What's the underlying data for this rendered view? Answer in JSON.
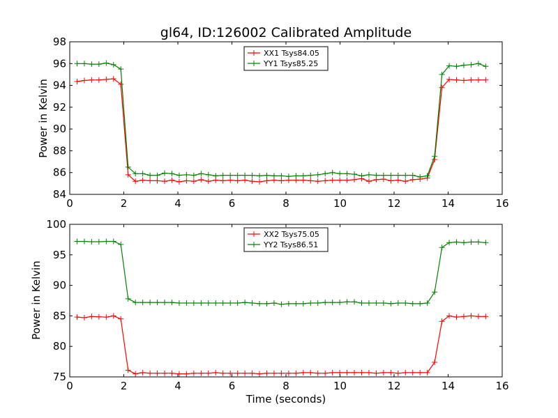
{
  "chart_data": [
    {
      "type": "line",
      "title": "gl64, ID:126002 Calibrated Amplitude",
      "xlabel": "",
      "ylabel": "Power in Kelvin",
      "xlim": [
        0,
        16
      ],
      "ylim": [
        84,
        98
      ],
      "xticks": [
        "0",
        "2",
        "4",
        "6",
        "8",
        "10",
        "12",
        "14",
        "16"
      ],
      "yticks": [
        "84",
        "86",
        "88",
        "90",
        "92",
        "94",
        "96",
        "98"
      ],
      "legend_position": "top-center",
      "x": [
        0.27,
        0.54,
        0.81,
        1.08,
        1.35,
        1.62,
        1.89,
        2.16,
        2.43,
        2.7,
        2.97,
        3.24,
        3.51,
        3.78,
        4.05,
        4.32,
        4.59,
        4.86,
        5.13,
        5.4,
        5.67,
        5.94,
        6.21,
        6.48,
        6.75,
        7.02,
        7.29,
        7.56,
        7.83,
        8.1,
        8.37,
        8.64,
        8.91,
        9.18,
        9.45,
        9.72,
        9.99,
        10.26,
        10.53,
        10.8,
        11.07,
        11.34,
        11.61,
        11.88,
        12.15,
        12.42,
        12.69,
        12.96,
        13.23,
        13.5,
        13.77,
        14.04,
        14.31,
        14.58,
        14.85,
        15.12,
        15.39
      ],
      "series": [
        {
          "name": "XX1 Tsys84.05",
          "color": "#ff0000",
          "values": [
            94.35,
            94.45,
            94.5,
            94.5,
            94.55,
            94.6,
            94.1,
            85.8,
            85.2,
            85.3,
            85.25,
            85.25,
            85.2,
            85.3,
            85.15,
            85.25,
            85.2,
            85.35,
            85.2,
            85.3,
            85.25,
            85.3,
            85.25,
            85.3,
            85.2,
            85.15,
            85.25,
            85.3,
            85.25,
            85.3,
            85.3,
            85.3,
            85.25,
            85.2,
            85.25,
            85.3,
            85.3,
            85.3,
            85.35,
            85.45,
            85.2,
            85.35,
            85.4,
            85.25,
            85.3,
            85.2,
            85.35,
            85.4,
            85.5,
            87.2,
            93.8,
            94.55,
            94.5,
            94.45,
            94.5,
            94.5,
            94.5
          ]
        },
        {
          "name": "YY1 Tsys85.25",
          "color": "#008000",
          "values": [
            96.0,
            96.0,
            95.95,
            95.95,
            96.05,
            95.9,
            95.5,
            86.5,
            85.9,
            85.9,
            85.75,
            85.75,
            85.95,
            85.9,
            85.75,
            85.8,
            85.75,
            85.9,
            85.8,
            85.7,
            85.75,
            85.75,
            85.75,
            85.75,
            85.75,
            85.7,
            85.75,
            85.7,
            85.7,
            85.65,
            85.7,
            85.7,
            85.75,
            85.8,
            85.9,
            86.0,
            85.9,
            85.9,
            85.85,
            85.7,
            85.8,
            85.75,
            85.75,
            85.75,
            85.75,
            85.75,
            85.75,
            85.6,
            85.7,
            87.5,
            95.0,
            95.8,
            95.75,
            95.85,
            95.9,
            96.0,
            95.75
          ]
        }
      ]
    },
    {
      "type": "line",
      "title": "",
      "xlabel": "Time (seconds)",
      "ylabel": "Power in Kelvin",
      "xlim": [
        0,
        16
      ],
      "ylim": [
        75,
        100
      ],
      "xticks": [
        "0",
        "2",
        "4",
        "6",
        "8",
        "10",
        "12",
        "14",
        "16"
      ],
      "yticks": [
        "75",
        "80",
        "85",
        "90",
        "95",
        "100"
      ],
      "legend_position": "top-center",
      "x": [
        0.27,
        0.54,
        0.81,
        1.08,
        1.35,
        1.62,
        1.89,
        2.16,
        2.43,
        2.7,
        2.97,
        3.24,
        3.51,
        3.78,
        4.05,
        4.32,
        4.59,
        4.86,
        5.13,
        5.4,
        5.67,
        5.94,
        6.21,
        6.48,
        6.75,
        7.02,
        7.29,
        7.56,
        7.83,
        8.1,
        8.37,
        8.64,
        8.91,
        9.18,
        9.45,
        9.72,
        9.99,
        10.26,
        10.53,
        10.8,
        11.07,
        11.34,
        11.61,
        11.88,
        12.15,
        12.42,
        12.69,
        12.96,
        13.23,
        13.5,
        13.77,
        14.04,
        14.31,
        14.58,
        14.85,
        15.12,
        15.39
      ],
      "series": [
        {
          "name": "XX2 Tsys75.05",
          "color": "#ff0000",
          "values": [
            84.8,
            84.7,
            84.9,
            84.85,
            84.8,
            85.0,
            84.5,
            76.1,
            75.5,
            75.7,
            75.6,
            75.6,
            75.6,
            75.6,
            75.5,
            75.5,
            75.6,
            75.6,
            75.6,
            75.7,
            75.6,
            75.6,
            75.6,
            75.6,
            75.6,
            75.5,
            75.6,
            75.6,
            75.6,
            75.6,
            75.6,
            75.7,
            75.7,
            75.6,
            75.6,
            75.7,
            75.7,
            75.7,
            75.7,
            75.7,
            75.7,
            75.6,
            75.7,
            75.7,
            75.6,
            75.7,
            75.7,
            75.7,
            75.7,
            77.4,
            84.1,
            85.0,
            84.8,
            84.9,
            85.0,
            84.9,
            84.9
          ]
        },
        {
          "name": "YY2 Tsys86.51",
          "color": "#008000",
          "values": [
            97.2,
            97.2,
            97.15,
            97.15,
            97.2,
            97.2,
            96.7,
            87.8,
            87.2,
            87.2,
            87.2,
            87.2,
            87.2,
            87.2,
            87.1,
            87.1,
            87.1,
            87.1,
            87.1,
            87.1,
            87.1,
            87.1,
            87.1,
            87.2,
            87.1,
            87.0,
            87.0,
            87.1,
            86.9,
            87.0,
            87.0,
            87.0,
            87.1,
            87.1,
            87.2,
            87.2,
            87.2,
            87.3,
            87.3,
            87.1,
            87.1,
            87.1,
            87.1,
            87.0,
            87.1,
            87.1,
            87.0,
            87.0,
            87.1,
            88.9,
            96.2,
            97.0,
            97.1,
            97.0,
            97.1,
            97.1,
            97.0
          ]
        }
      ]
    }
  ]
}
